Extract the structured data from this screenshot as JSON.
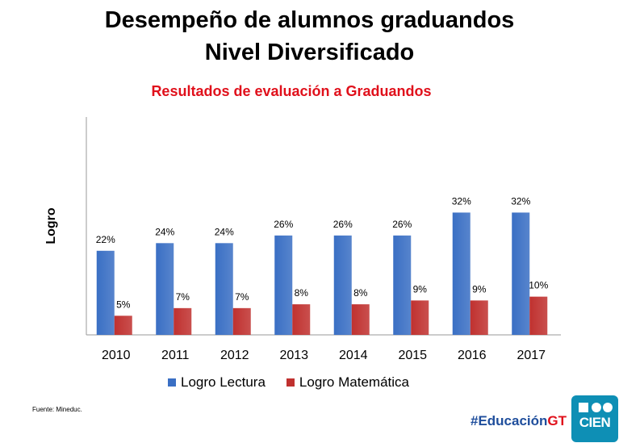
{
  "header": {
    "title_line1": "Desempeño de alumnos graduandos",
    "title_line2": "Nivel Diversificado"
  },
  "chart_data": {
    "type": "bar",
    "title": "Resultados de evaluación a Graduandos",
    "ylabel": "Logro",
    "xlabel": "",
    "categories": [
      "2010",
      "2011",
      "2012",
      "2013",
      "2014",
      "2015",
      "2016",
      "2017"
    ],
    "series": [
      {
        "name": "Logro Lectura",
        "color": "#3a6fc4",
        "values": [
          22,
          24,
          24,
          26,
          26,
          26,
          32,
          32
        ],
        "labels": [
          "22%",
          "24%",
          "24%",
          "26%",
          "26%",
          "26%",
          "32%",
          "32%"
        ]
      },
      {
        "name": "Logro Matemática",
        "color": "#c0312f",
        "values": [
          5,
          7,
          7,
          8,
          8,
          9,
          9,
          10
        ],
        "labels": [
          "5%",
          "7%",
          "7%",
          "8%",
          "8%",
          "9%",
          "9%",
          "10%"
        ]
      }
    ],
    "ylim": [
      0,
      57
    ],
    "grid": false,
    "legend_position": "bottom"
  },
  "footer": {
    "source": "Fuente: Mineduc.",
    "hashtag_main": "#Educación",
    "hashtag_suffix": "GT",
    "logo_text": "CIEN"
  },
  "colors": {
    "title_red": "#e0101b",
    "hashtag_blue": "#1f4e9c",
    "logo_teal": "#0e8fb5"
  }
}
